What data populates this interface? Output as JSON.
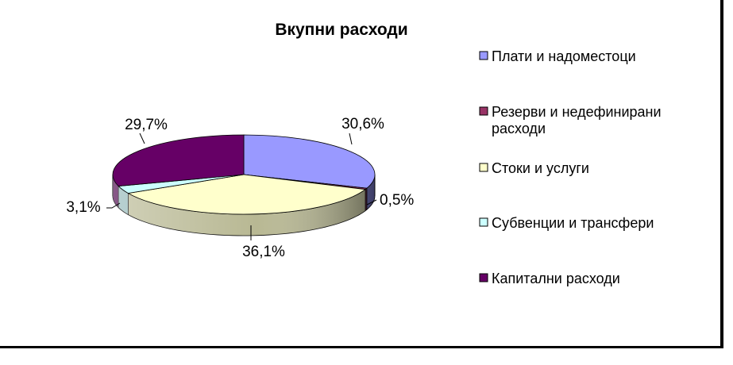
{
  "chart_data": {
    "type": "pie",
    "title": "Вкупни расходи",
    "style": "3d-exploded-none",
    "legend_position": "right",
    "categories": [
      "Плати и надоместоци",
      "Резерви и недефинирани расходи",
      "Стоки и услуги",
      "Субвенции и трансфери",
      "Капитални расходи"
    ],
    "legend_lines": [
      [
        "Плати и надоместоци"
      ],
      [
        "Резерви и недефинирани",
        "расходи"
      ],
      [
        "Стоки и услуги"
      ],
      [
        "Субвенции и трансфери"
      ],
      [
        "Капитални расходи"
      ]
    ],
    "values": [
      30.6,
      0.5,
      36.1,
      3.1,
      29.7
    ],
    "labels": [
      "30,6%",
      "0,5%",
      "36,1%",
      "3,1%",
      "29,7%"
    ],
    "colors": [
      "#9999ff",
      "#993366",
      "#ffffcc",
      "#ccffff",
      "#660066"
    ]
  }
}
